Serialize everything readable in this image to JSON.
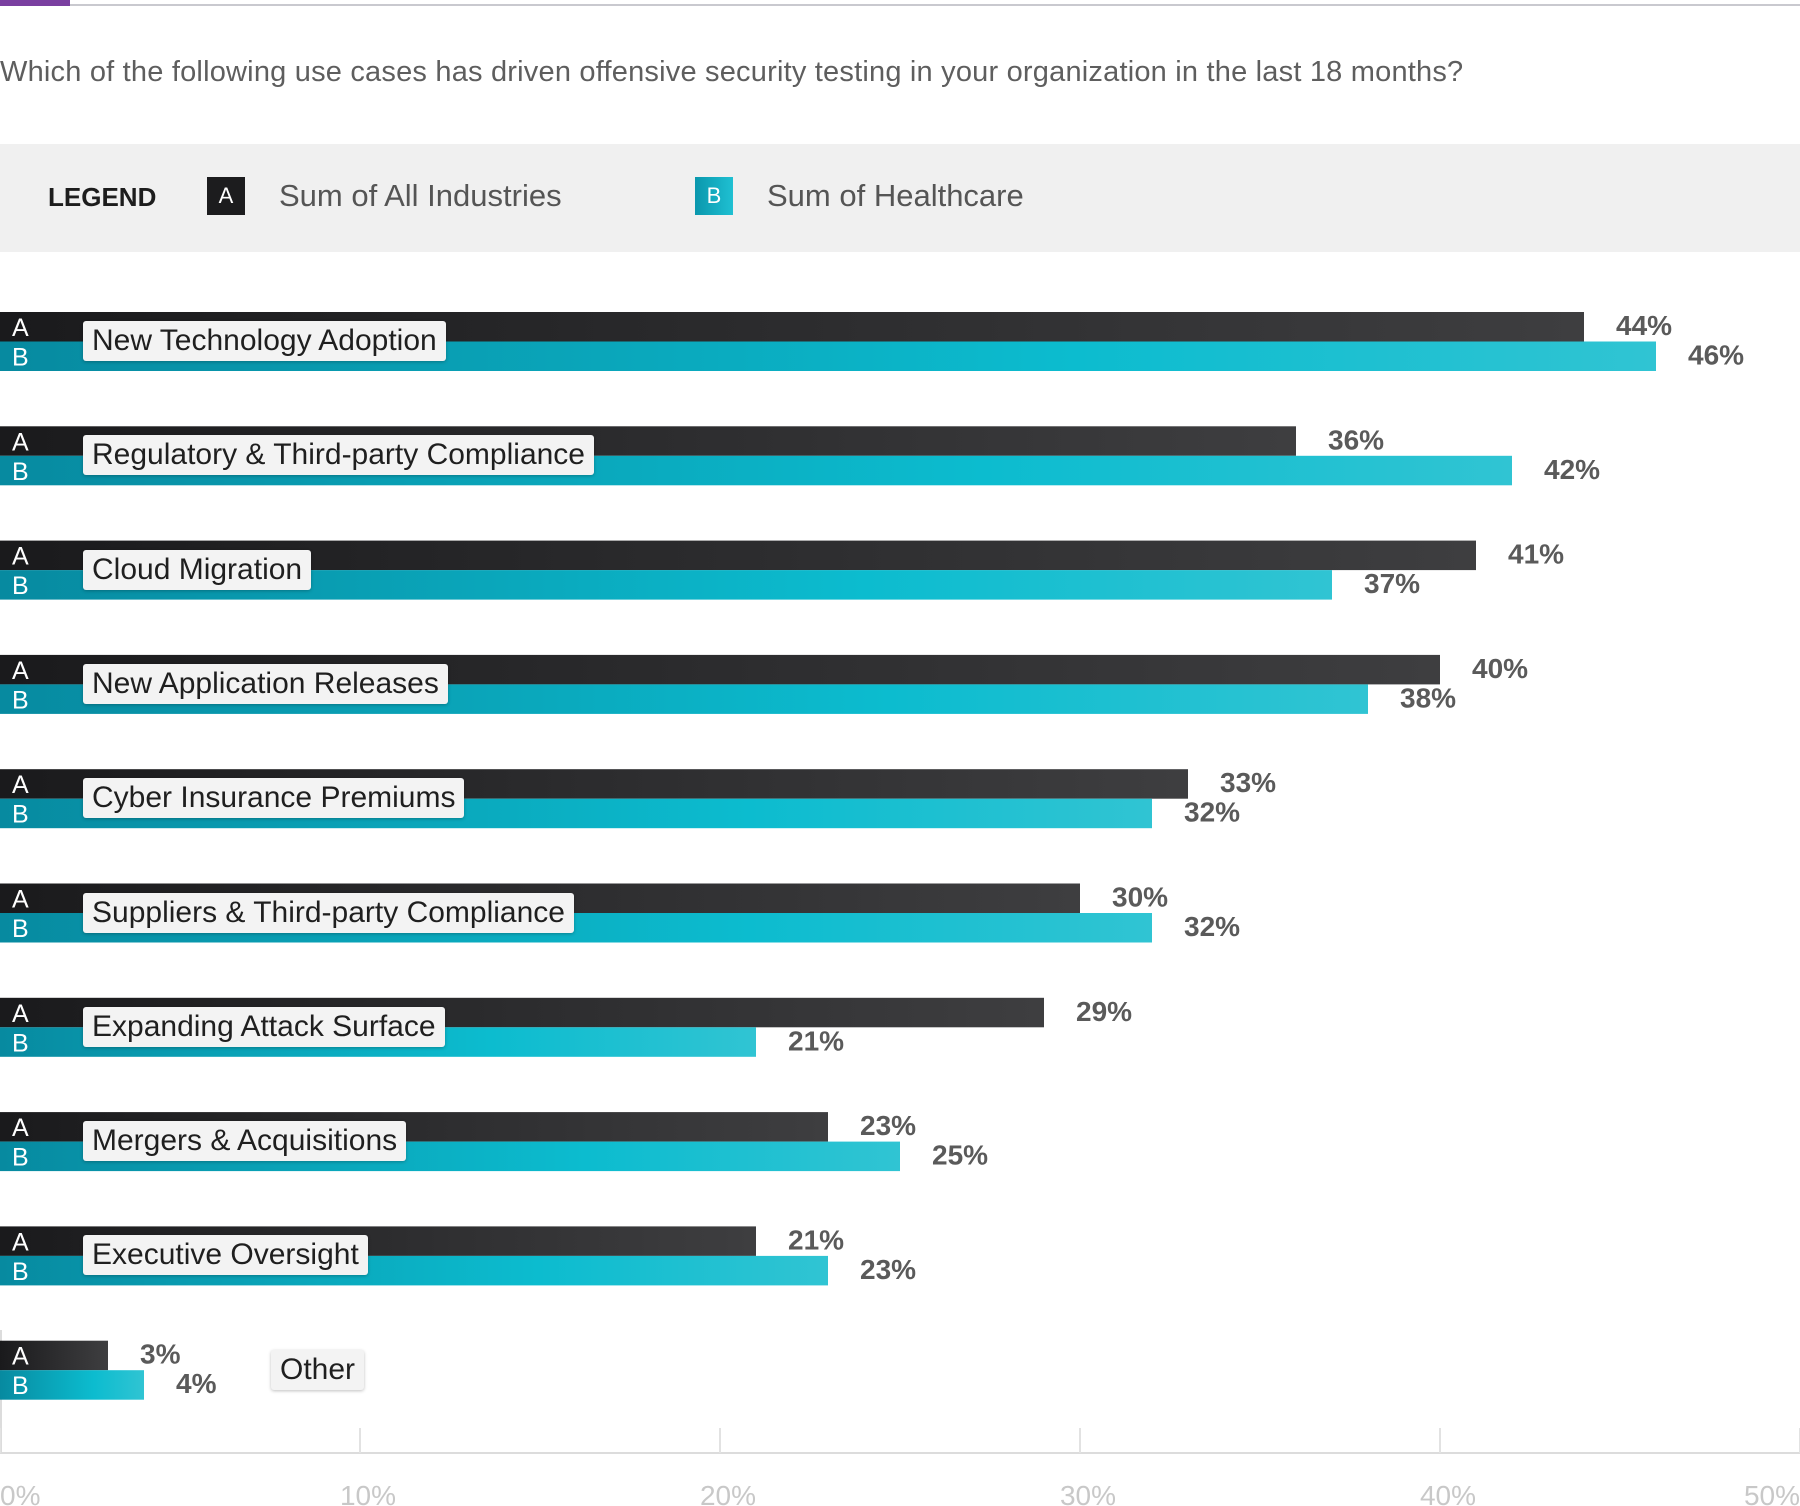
{
  "question": "Which of the following use cases has driven offensive security testing in your organization in the last 18 months?",
  "legend": {
    "title": "LEGEND",
    "series_a_letter": "A",
    "series_a_label": "Sum of All Industries",
    "series_b_letter": "B",
    "series_b_label": "Sum of Healthcare"
  },
  "colors": {
    "accent": "#7a3fa0",
    "series_a": "#1c1c1e",
    "series_b": "#0fb0c4"
  },
  "chart_data": {
    "type": "bar",
    "orientation": "horizontal",
    "categories": [
      "New Technology Adoption",
      "Regulatory & Third-party Compliance",
      "Cloud Migration",
      "New Application Releases",
      "Cyber Insurance Premiums",
      "Suppliers & Third-party Compliance",
      "Expanding Attack Surface",
      "Mergers & Acquisitions",
      "Executive Oversight",
      "Other"
    ],
    "series": [
      {
        "name": "Sum of All Industries",
        "letter": "A",
        "values": [
          44,
          36,
          41,
          40,
          33,
          30,
          29,
          23,
          21,
          3
        ]
      },
      {
        "name": "Sum of Healthcare",
        "letter": "B",
        "values": [
          46,
          42,
          37,
          38,
          32,
          32,
          21,
          25,
          23,
          4
        ]
      }
    ],
    "value_labels": {
      "a": [
        "44%",
        "36%",
        "41%",
        "40%",
        "33%",
        "30%",
        "29%",
        "23%",
        "21%",
        "3%"
      ],
      "b": [
        "46%",
        "42%",
        "37%",
        "38%",
        "32%",
        "32%",
        "21%",
        "25%",
        "23%",
        "4%"
      ]
    },
    "xlim": [
      0,
      50
    ],
    "xticks": [
      0,
      10,
      20,
      30,
      40,
      50
    ],
    "xtick_labels": [
      "0%",
      "10%",
      "20%",
      "30%",
      "40%",
      "50%"
    ],
    "grid": true,
    "legend_position": "top"
  }
}
